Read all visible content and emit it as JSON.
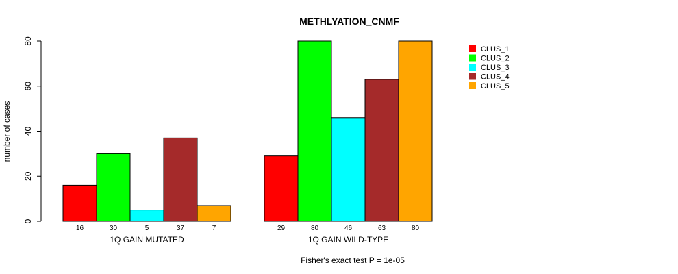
{
  "chart_data": {
    "type": "bar",
    "title": "METHLYATION_CNMF",
    "ylabel": "number of cases",
    "xlabel": "",
    "ylim": [
      0,
      80
    ],
    "yticks": [
      "0",
      "20",
      "40",
      "60",
      "80"
    ],
    "groups": [
      {
        "name": "1Q GAIN MUTATED",
        "values": [
          16,
          30,
          5,
          37,
          7
        ],
        "labels": [
          "16",
          "30",
          "5",
          "37",
          "7"
        ]
      },
      {
        "name": "1Q GAIN WILD-TYPE",
        "values": [
          29,
          80,
          46,
          63,
          80
        ],
        "labels": [
          "29",
          "80",
          "46",
          "63",
          "80"
        ]
      }
    ],
    "series": [
      {
        "name": "CLUS_1",
        "color": "#ff0000"
      },
      {
        "name": "CLUS_2",
        "color": "#00ff00"
      },
      {
        "name": "CLUS_3",
        "color": "#00ffff"
      },
      {
        "name": "CLUS_4",
        "color": "#a52a2a"
      },
      {
        "name": "CLUS_5",
        "color": "#ffa500"
      }
    ],
    "legend_position": "top-right",
    "footnote": "Fisher's exact test P = 1e-05"
  }
}
